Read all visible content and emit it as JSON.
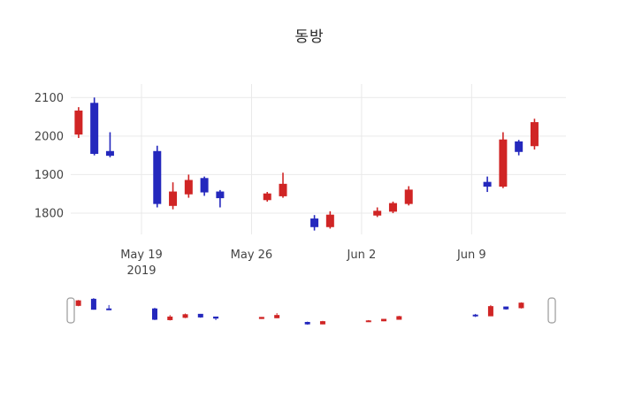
{
  "chart_data": {
    "type": "candlestick",
    "title": "동방",
    "legend": "none",
    "grid": true,
    "rangeslider": true,
    "increasing_color": "#d02525",
    "decreasing_color": "#2428bd",
    "grid_color": "#e9e9e9",
    "tick_color": "#444444",
    "y_ticks": [
      1800,
      1900,
      2000,
      2100
    ],
    "y_range": [
      1745,
      2135
    ],
    "x_range": [
      "2019-05-14T12:00:00Z",
      "2019-06-15T00:00:00Z"
    ],
    "x_ticks": [
      {
        "date": "2019-05-19",
        "label": "May 19",
        "sublabel": "2019"
      },
      {
        "date": "2019-05-26",
        "label": "May 26",
        "sublabel": ""
      },
      {
        "date": "2019-06-02",
        "label": "Jun 2",
        "sublabel": ""
      },
      {
        "date": "2019-06-09",
        "label": "Jun 9",
        "sublabel": ""
      }
    ],
    "candles": [
      {
        "date": "2019-05-15",
        "open": 2005,
        "high": 2075,
        "low": 1995,
        "close": 2065
      },
      {
        "date": "2019-05-16",
        "open": 2085,
        "high": 2100,
        "low": 1950,
        "close": 1955
      },
      {
        "date": "2019-05-17",
        "open": 1960,
        "high": 2010,
        "low": 1945,
        "close": 1950
      },
      {
        "date": "2019-05-20",
        "open": 1960,
        "high": 1975,
        "low": 1815,
        "close": 1825
      },
      {
        "date": "2019-05-21",
        "open": 1820,
        "high": 1880,
        "low": 1810,
        "close": 1855
      },
      {
        "date": "2019-05-22",
        "open": 1850,
        "high": 1900,
        "low": 1840,
        "close": 1885
      },
      {
        "date": "2019-05-23",
        "open": 1890,
        "high": 1895,
        "low": 1845,
        "close": 1855
      },
      {
        "date": "2019-05-24",
        "open": 1855,
        "high": 1860,
        "low": 1815,
        "close": 1840
      },
      {
        "date": "2019-05-27",
        "open": 1835,
        "high": 1855,
        "low": 1830,
        "close": 1850
      },
      {
        "date": "2019-05-28",
        "open": 1845,
        "high": 1905,
        "low": 1840,
        "close": 1875
      },
      {
        "date": "2019-05-30",
        "open": 1785,
        "high": 1795,
        "low": 1755,
        "close": 1765
      },
      {
        "date": "2019-05-31",
        "open": 1765,
        "high": 1805,
        "low": 1760,
        "close": 1795
      },
      {
        "date": "2019-06-03",
        "open": 1795,
        "high": 1815,
        "low": 1790,
        "close": 1805
      },
      {
        "date": "2019-06-04",
        "open": 1805,
        "high": 1830,
        "low": 1800,
        "close": 1825
      },
      {
        "date": "2019-06-05",
        "open": 1825,
        "high": 1870,
        "low": 1820,
        "close": 1860
      },
      {
        "date": "2019-06-10",
        "open": 1880,
        "high": 1895,
        "low": 1855,
        "close": 1870
      },
      {
        "date": "2019-06-11",
        "open": 1870,
        "high": 2010,
        "low": 1865,
        "close": 1990
      },
      {
        "date": "2019-06-12",
        "open": 1985,
        "high": 1990,
        "low": 1950,
        "close": 1960
      },
      {
        "date": "2019-06-13",
        "open": 1975,
        "high": 2045,
        "low": 1965,
        "close": 2035
      }
    ]
  }
}
